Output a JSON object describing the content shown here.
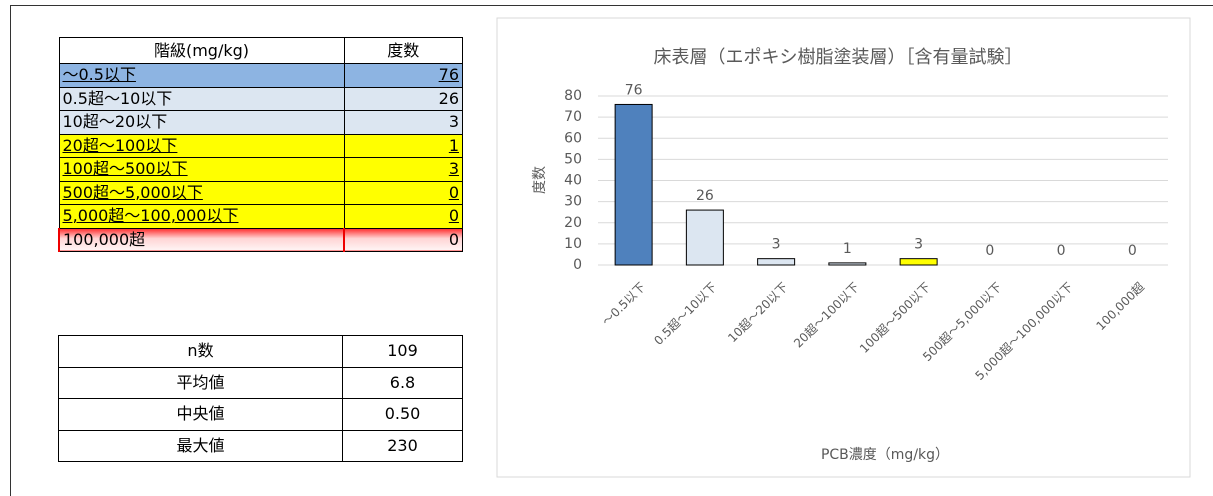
{
  "frequency_table": {
    "header": [
      "階級(mg/kg)",
      "度数"
    ],
    "rows": [
      [
        "～0.5以下",
        "76"
      ],
      [
        "0.5超～10以下",
        "26"
      ],
      [
        "10超～20以下",
        "3"
      ],
      [
        "20超～100以下",
        "1"
      ],
      [
        "100超～500以下",
        "3"
      ],
      [
        "500超～5,000以下",
        "0"
      ],
      [
        "5,000超～100,000以下",
        "0"
      ],
      [
        "100,000超",
        "0"
      ]
    ]
  },
  "stats_table": {
    "rows": [
      [
        "n数",
        "109"
      ],
      [
        "平均値",
        "6.8"
      ],
      [
        "中央値",
        "0.50"
      ],
      [
        "最大値",
        "230"
      ]
    ]
  },
  "chart_data": {
    "type": "bar",
    "title": "床表層（エポキシ樹脂塗装層）［含有量試験］",
    "y_label": "度数",
    "x_label": "PCB濃度（mg/kg）",
    "categories": [
      "～0.5以下",
      "0.5超～10以下",
      "10超～20以下",
      "20超～100以下",
      "100超～500以下",
      "500超～5,000以下",
      "5,000超～100,000以下",
      "100,000超"
    ],
    "values": [
      76,
      26,
      3,
      1,
      3,
      0,
      0,
      0
    ],
    "colors": [
      "#4f81bd",
      "#dce6f1",
      "#dce6f1",
      "#dce6f1",
      "#ffff00",
      "#dce6f1",
      "#dce6f1",
      "#ff6666"
    ],
    "ylim": [
      0,
      80
    ],
    "yticks": [
      0,
      10,
      20,
      30,
      40,
      50,
      60,
      70,
      80
    ],
    "grid": true
  }
}
